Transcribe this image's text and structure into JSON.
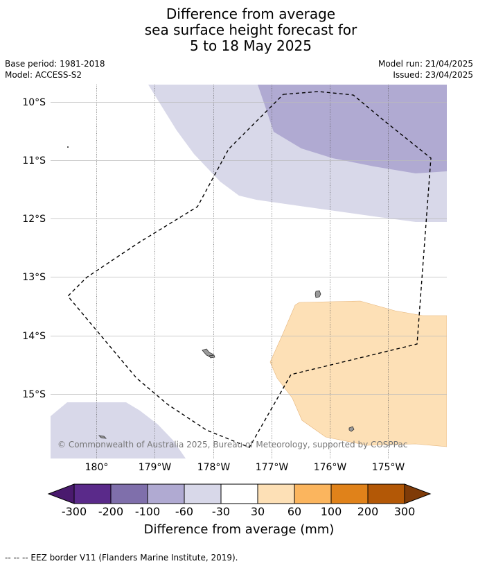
{
  "title": {
    "line1": "Difference from average",
    "line2": "sea surface height forecast for",
    "line3": "5 to 18 May 2025"
  },
  "meta": {
    "base_period": "Base period: 1981-2018",
    "model": "Model: ACCESS-S2",
    "model_run": "Model run: 21/04/2025",
    "issued": "Issued: 23/04/2025"
  },
  "map": {
    "lat_labels": [
      "10°S",
      "11°S",
      "12°S",
      "13°S",
      "14°S",
      "15°S"
    ],
    "lon_labels": [
      "180°",
      "179°W",
      "178°W",
      "177°W",
      "176°W",
      "175°W"
    ],
    "copyright": "© Commonwealth of Australia 2025, Bureau of Meteorology, supported by COSPPac",
    "colors": {
      "purple_light": "#d8d8e9",
      "purple_mid": "#b0aad2",
      "orange_light": "#fde0b6",
      "land": "#9a9a9a",
      "grid": "#bbbbbb"
    }
  },
  "colorbar": {
    "ticks": [
      "-300",
      "-200",
      "-100",
      "-60",
      "-30",
      "30",
      "60",
      "100",
      "200",
      "300"
    ],
    "colors": [
      "#4a1a6e",
      "#5a2a8a",
      "#7f6fab",
      "#b0aad2",
      "#d8d8e9",
      "#ffffff",
      "#fde0b6",
      "#fbb55e",
      "#e0821a",
      "#b35806",
      "#7f3b08"
    ],
    "title": "Difference from average (mm)"
  },
  "footer": "--  --  -- EEZ border V11 (Flanders Marine Institute, 2019)."
}
